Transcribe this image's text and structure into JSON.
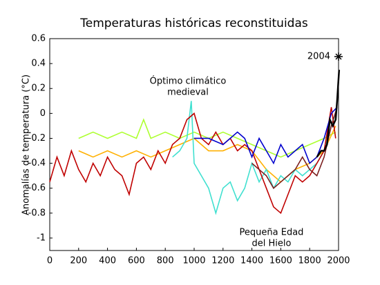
{
  "chart_data": {
    "type": "line",
    "title": "Temperaturas históricas reconstituidas",
    "ylabel": "Anomalías de temperatura (°C)",
    "xlim": [
      0,
      2000
    ],
    "xticks": [
      0,
      200,
      400,
      600,
      800,
      1000,
      1200,
      1400,
      1600,
      1800,
      2000
    ],
    "ylim": [
      -1.1,
      0.6
    ],
    "yticks": [
      -1,
      -0.8,
      -0.6,
      -0.4,
      -0.2,
      0,
      0.2,
      0.4,
      0.6
    ],
    "series": [
      {
        "color": "#adff2f",
        "x": [
          200,
          300,
          400,
          500,
          600,
          650,
          700,
          800,
          900,
          1000,
          1100,
          1200,
          1300,
          1400,
          1500,
          1600,
          1700,
          1800,
          1900,
          1980
        ],
        "values": [
          -0.2,
          -0.15,
          -0.2,
          -0.15,
          -0.2,
          -0.05,
          -0.2,
          -0.15,
          -0.2,
          -0.15,
          -0.2,
          -0.15,
          -0.2,
          -0.25,
          -0.3,
          -0.35,
          -0.3,
          -0.25,
          -0.2,
          -0.15
        ]
      },
      {
        "color": "#ffb000",
        "x": [
          200,
          300,
          400,
          500,
          600,
          700,
          800,
          900,
          1000,
          1100,
          1200,
          1300,
          1400,
          1500,
          1600,
          1700,
          1800,
          1900,
          1980
        ],
        "values": [
          -0.3,
          -0.35,
          -0.3,
          -0.35,
          -0.3,
          -0.35,
          -0.3,
          -0.25,
          -0.2,
          -0.3,
          -0.3,
          -0.25,
          -0.3,
          -0.45,
          -0.55,
          -0.45,
          -0.4,
          -0.3,
          -0.1
        ]
      },
      {
        "color": "#40e0d0",
        "x": [
          850,
          900,
          950,
          980,
          1000,
          1050,
          1100,
          1150,
          1200,
          1250,
          1300,
          1350,
          1400,
          1450,
          1500,
          1550,
          1600,
          1650,
          1700,
          1750,
          1800,
          1850,
          1900,
          1950,
          1980
        ],
        "values": [
          -0.35,
          -0.3,
          -0.2,
          0.1,
          -0.4,
          -0.5,
          -0.6,
          -0.8,
          -0.6,
          -0.55,
          -0.7,
          -0.6,
          -0.4,
          -0.55,
          -0.45,
          -0.6,
          -0.5,
          -0.55,
          -0.45,
          -0.5,
          -0.45,
          -0.4,
          -0.3,
          -0.1,
          0
        ]
      },
      {
        "color": "#c00000",
        "x": [
          0,
          50,
          100,
          150,
          200,
          250,
          300,
          350,
          400,
          450,
          500,
          550,
          600,
          650,
          700,
          750,
          800,
          850,
          900,
          950,
          1000,
          1050,
          1100,
          1150,
          1200,
          1250,
          1300,
          1350,
          1400,
          1450,
          1500,
          1550,
          1600,
          1650,
          1700,
          1750,
          1800,
          1850,
          1900,
          1950,
          1980
        ],
        "values": [
          -0.55,
          -0.35,
          -0.5,
          -0.3,
          -0.45,
          -0.55,
          -0.4,
          -0.5,
          -0.35,
          -0.45,
          -0.5,
          -0.65,
          -0.4,
          -0.35,
          -0.45,
          -0.3,
          -0.4,
          -0.25,
          -0.2,
          -0.05,
          0,
          -0.2,
          -0.25,
          -0.15,
          -0.25,
          -0.2,
          -0.3,
          -0.25,
          -0.3,
          -0.45,
          -0.6,
          -0.75,
          -0.8,
          -0.65,
          -0.5,
          -0.55,
          -0.5,
          -0.4,
          -0.3,
          0.05,
          -0.2
        ]
      },
      {
        "color": "#0000cd",
        "x": [
          1000,
          1100,
          1200,
          1300,
          1350,
          1400,
          1450,
          1500,
          1550,
          1600,
          1650,
          1700,
          1750,
          1800,
          1850,
          1900,
          1950,
          1990
        ],
        "values": [
          -0.2,
          -0.2,
          -0.25,
          -0.15,
          -0.2,
          -0.35,
          -0.2,
          -0.3,
          -0.4,
          -0.25,
          -0.35,
          -0.3,
          -0.25,
          -0.4,
          -0.35,
          -0.2,
          0,
          0.05
        ]
      },
      {
        "color": "#7b1f1f",
        "x": [
          1400,
          1500,
          1550,
          1600,
          1650,
          1700,
          1750,
          1800,
          1850,
          1900,
          1950,
          1990
        ],
        "values": [
          -0.4,
          -0.5,
          -0.6,
          -0.55,
          -0.5,
          -0.45,
          -0.35,
          -0.45,
          -0.5,
          -0.35,
          -0.1,
          0.05
        ]
      },
      {
        "color": "#000000",
        "x": [
          1850,
          1880,
          1900,
          1920,
          1940,
          1960,
          1980,
          1990,
          2004
        ],
        "values": [
          -0.35,
          -0.3,
          -0.3,
          -0.25,
          -0.05,
          -0.1,
          -0.05,
          0.1,
          0.35
        ]
      }
    ],
    "annotations": [
      [
        "Óptimo climático",
        "medieval"
      ],
      [
        "Pequeña Edad",
        "del Hielo"
      ],
      [
        "2004"
      ]
    ]
  }
}
